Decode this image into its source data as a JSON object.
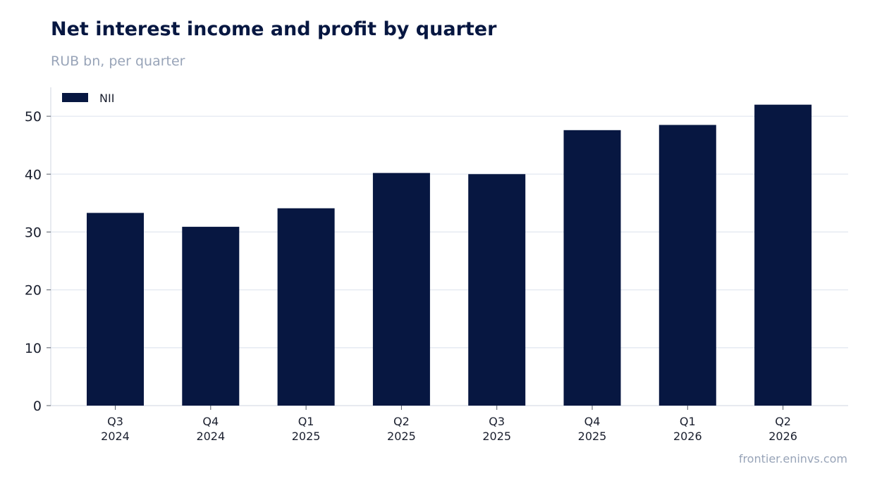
{
  "header": {
    "title": "Net interest income and profit by quarter",
    "subtitle": "RUB bn, per quarter"
  },
  "footer": {
    "source": "frontier.eninvs.com"
  },
  "colors": {
    "bar": "#071741",
    "grid": "#e3e8f0",
    "axis": "#cfd6e0",
    "text": "#1a1f2e",
    "muted": "#98a4b8"
  },
  "chart_data": {
    "type": "bar",
    "title": "Net interest income and profit by quarter",
    "subtitle": "RUB bn, per quarter",
    "categories": [
      [
        "Q3",
        "2024"
      ],
      [
        "Q4",
        "2024"
      ],
      [
        "Q1",
        "2025"
      ],
      [
        "Q2",
        "2025"
      ],
      [
        "Q3",
        "2025"
      ],
      [
        "Q4",
        "2025"
      ],
      [
        "Q1",
        "2026"
      ],
      [
        "Q2",
        "2026"
      ]
    ],
    "series": [
      {
        "name": "NII",
        "values": [
          33.3,
          30.9,
          34.1,
          40.2,
          40.0,
          47.6,
          48.5,
          52.0
        ]
      }
    ],
    "ylim": [
      0,
      55
    ],
    "yticks": [
      0,
      10,
      20,
      30,
      40,
      50
    ],
    "grid": true,
    "legend_position": "top-left"
  }
}
